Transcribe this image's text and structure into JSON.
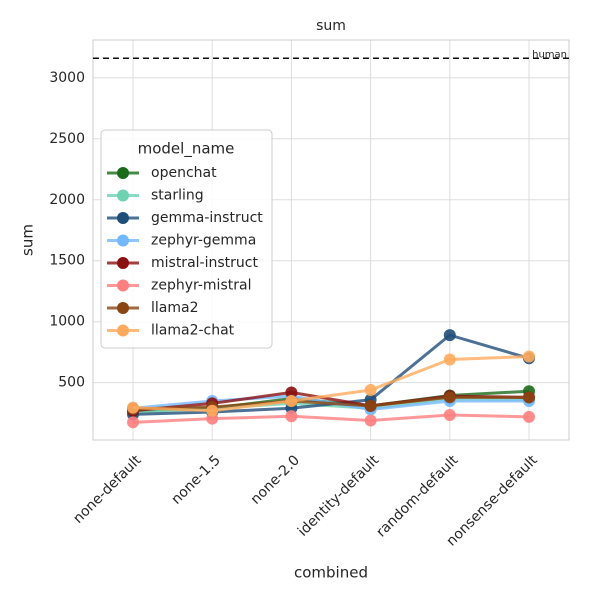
{
  "chart_data": {
    "type": "line",
    "title": "sum",
    "x_label": "combined",
    "y_label": "sum",
    "categories": [
      "none-default",
      "none-1.5",
      "none-2.0",
      "identity-default",
      "random-default",
      "nonsense-default"
    ],
    "series": [
      {
        "name": "openchat",
        "color": "#1a6b1a",
        "values": [
          270,
          290,
          370,
          310,
          395,
          430
        ]
      },
      {
        "name": "starling",
        "color": "#6dd3b0",
        "values": [
          260,
          290,
          330,
          290,
          370,
          360
        ]
      },
      {
        "name": "gemma-instruct",
        "color": "#1f4e79",
        "values": [
          240,
          260,
          290,
          360,
          890,
          700
        ]
      },
      {
        "name": "zephyr-gemma",
        "color": "#74b9ff",
        "values": [
          290,
          350,
          390,
          280,
          350,
          350
        ]
      },
      {
        "name": "mistral-instruct",
        "color": "#8b1010",
        "values": [
          270,
          330,
          420,
          310,
          390,
          380
        ]
      },
      {
        "name": "zephyr-mistral",
        "color": "#ff8080",
        "values": [
          175,
          205,
          225,
          190,
          235,
          220
        ]
      },
      {
        "name": "llama2",
        "color": "#8b4513",
        "values": [
          285,
          300,
          350,
          310,
          380,
          380
        ]
      },
      {
        "name": "llama2-chat",
        "color": "#ffab5e",
        "values": [
          295,
          270,
          350,
          440,
          690,
          715
        ]
      }
    ],
    "ylim": [
      30,
      3310
    ],
    "yticks": [
      500,
      1000,
      1500,
      2000,
      2500,
      3000
    ],
    "grid": true,
    "legend_title": "model_name",
    "legend_position": "center left",
    "hline": {
      "value": 3160,
      "label": "human"
    }
  }
}
